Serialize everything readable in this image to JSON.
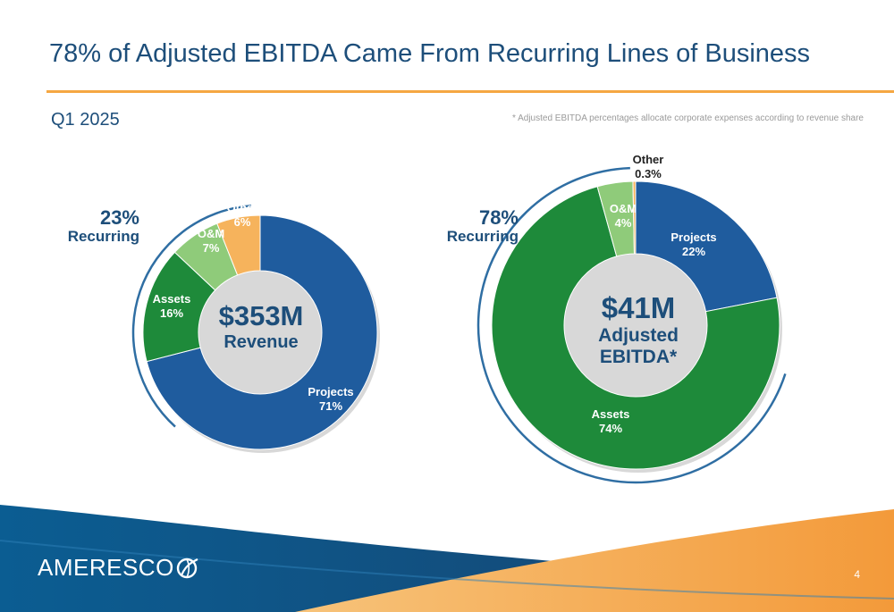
{
  "header": {
    "title": "78% of Adjusted EBITDA Came From Recurring Lines of Business",
    "period": "Q1 2025",
    "footnote": "* Adjusted EBITDA percentages allocate corporate expenses according to revenue share"
  },
  "colors": {
    "projects": "#1f5c9e",
    "assets": "#1e8a3a",
    "om": "#8fcb7a",
    "other": "#f6b35c",
    "accent": "#f5a742",
    "text": "#1d4e7a"
  },
  "chart_data": [
    {
      "type": "pie",
      "variant": "donut",
      "center_value": "$353M",
      "center_label": "Revenue",
      "recurring_pct": "23%",
      "recurring_label": "Recurring",
      "slices": [
        {
          "name": "Projects",
          "label": "71%",
          "value": 71
        },
        {
          "name": "Assets",
          "label": "16%",
          "value": 16
        },
        {
          "name": "O&M",
          "label": "7%",
          "value": 7
        },
        {
          "name": "Other",
          "label": "6%",
          "value": 6
        }
      ]
    },
    {
      "type": "pie",
      "variant": "donut",
      "center_value": "$41M",
      "center_label": [
        "Adjusted",
        "EBITDA*"
      ],
      "recurring_pct": "78%",
      "recurring_label": "Recurring",
      "slices": [
        {
          "name": "Projects",
          "label": "22%",
          "value": 22
        },
        {
          "name": "Assets",
          "label": "74%",
          "value": 74
        },
        {
          "name": "O&M",
          "label": "4%",
          "value": 4
        },
        {
          "name": "Other",
          "label": "0.3%",
          "value": 0.3
        }
      ]
    }
  ],
  "footer": {
    "logo": "AMERESCO",
    "page_number": "4"
  }
}
